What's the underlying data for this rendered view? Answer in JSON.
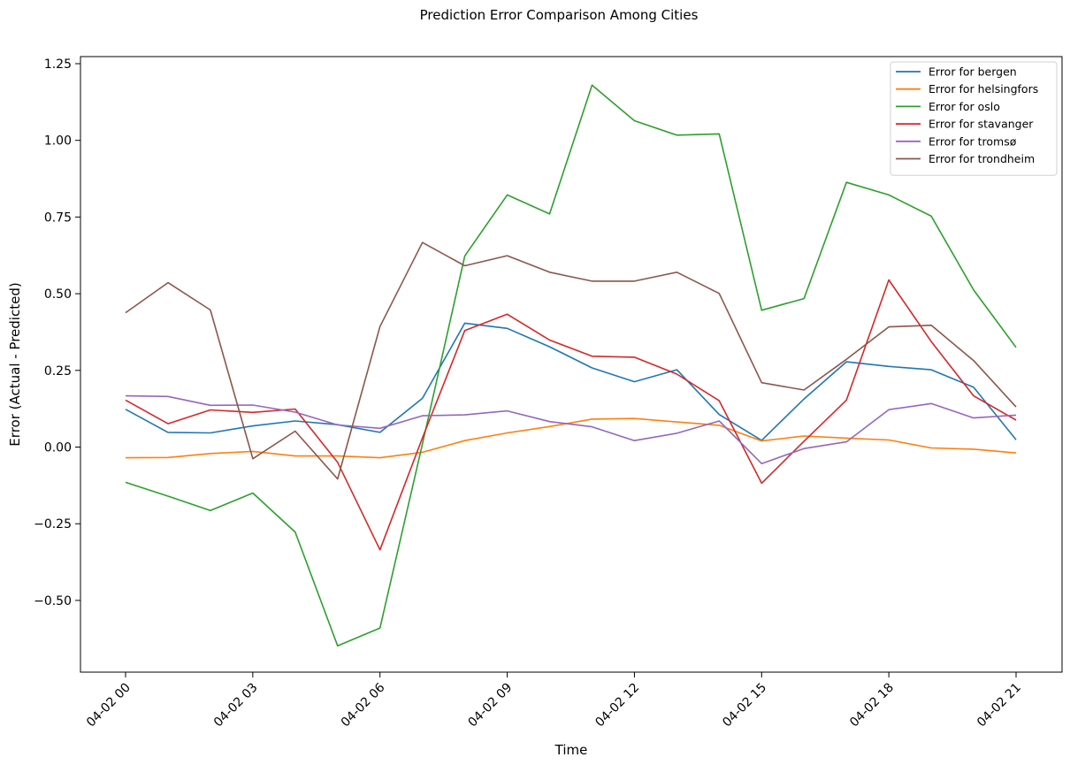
{
  "chart_data": {
    "type": "line",
    "title": "Prediction Error Comparison Among Cities",
    "xlabel": "Time",
    "ylabel": "Error (Actual - Predicted)",
    "x": [
      "04-02 00",
      "04-02 01",
      "04-02 02",
      "04-02 03",
      "04-02 04",
      "04-02 05",
      "04-02 06",
      "04-02 07",
      "04-02 08",
      "04-02 09",
      "04-02 10",
      "04-02 11",
      "04-02 12",
      "04-02 13",
      "04-02 14",
      "04-02 15",
      "04-02 16",
      "04-02 17",
      "04-02 18",
      "04-02 19",
      "04-02 20",
      "04-02 21"
    ],
    "xticks": [
      "04-02 00",
      "04-02 03",
      "04-02 06",
      "04-02 09",
      "04-02 12",
      "04-02 15",
      "04-02 18",
      "04-02 21"
    ],
    "ylim": [
      -0.75,
      1.27
    ],
    "yticks": [
      -0.5,
      -0.25,
      0.0,
      0.25,
      0.5,
      0.75,
      1.0,
      1.25
    ],
    "ytick_labels": [
      "−0.50",
      "−0.25",
      "0.00",
      "0.25",
      "0.50",
      "0.75",
      "1.00",
      "1.25"
    ],
    "grid": false,
    "legend_position": "top-right",
    "series": [
      {
        "name": "Error for bergen",
        "color": "#1f77b4",
        "values": [
          0.123,
          0.048,
          0.046,
          0.069,
          0.085,
          0.073,
          0.048,
          0.159,
          0.404,
          0.387,
          0.327,
          0.258,
          0.213,
          0.252,
          0.106,
          0.022,
          0.157,
          0.278,
          0.263,
          0.252,
          0.195,
          0.024
        ]
      },
      {
        "name": "Error for helsingfors",
        "color": "#ff7f0e",
        "values": [
          -0.035,
          -0.034,
          -0.021,
          -0.014,
          -0.029,
          -0.029,
          -0.035,
          -0.017,
          0.021,
          0.046,
          0.067,
          0.091,
          0.093,
          0.082,
          0.071,
          0.02,
          0.036,
          0.029,
          0.023,
          -0.003,
          -0.007,
          -0.019
        ]
      },
      {
        "name": "Error for oslo",
        "color": "#2ca02c",
        "values": [
          -0.115,
          -0.16,
          -0.207,
          -0.15,
          -0.277,
          -0.648,
          -0.59,
          0.01,
          0.623,
          0.822,
          0.76,
          1.18,
          1.064,
          1.017,
          1.021,
          0.446,
          0.484,
          0.863,
          0.822,
          0.753,
          0.512,
          0.325
        ]
      },
      {
        "name": "Error for stavanger",
        "color": "#d62728",
        "values": [
          0.153,
          0.076,
          0.121,
          0.113,
          0.124,
          -0.05,
          -0.335,
          0.03,
          0.38,
          0.433,
          0.349,
          0.296,
          0.293,
          0.238,
          0.151,
          -0.118,
          0.019,
          0.153,
          0.545,
          0.344,
          0.167,
          0.088
        ]
      },
      {
        "name": "Error for tromsø",
        "color": "#9467bd",
        "values": [
          0.167,
          0.165,
          0.136,
          0.137,
          0.114,
          0.072,
          0.061,
          0.102,
          0.105,
          0.118,
          0.083,
          0.066,
          0.021,
          0.045,
          0.085,
          -0.054,
          -0.005,
          0.017,
          0.122,
          0.142,
          0.095,
          0.104
        ]
      },
      {
        "name": "Error for trondheim",
        "color": "#8c564b",
        "values": [
          0.438,
          0.536,
          0.447,
          -0.038,
          0.052,
          -0.104,
          0.393,
          0.667,
          0.591,
          0.624,
          0.57,
          0.541,
          0.541,
          0.57,
          0.501,
          0.21,
          0.186,
          0.286,
          0.392,
          0.397,
          0.282,
          0.131
        ]
      }
    ]
  }
}
